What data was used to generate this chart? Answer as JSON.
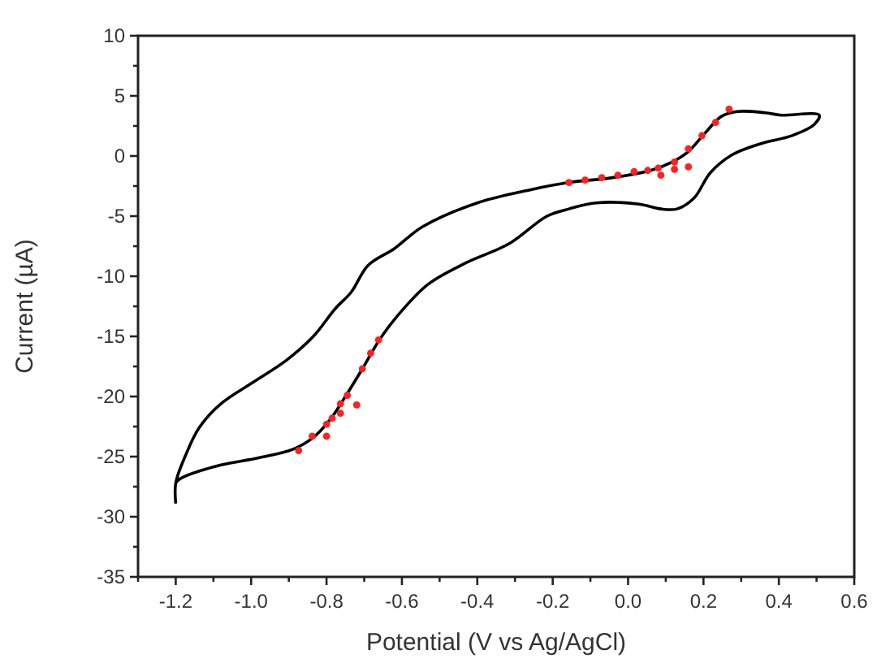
{
  "chart_data": {
    "type": "line",
    "xlabel": "Potential (V vs Ag/AgCl)",
    "ylabel": "Current (µA)",
    "xlim": [
      -1.3,
      0.6
    ],
    "ylim": [
      -35,
      10
    ],
    "xticks": [
      {
        "value": -1.3,
        "label": null
      },
      {
        "value": -1.2,
        "label": "-1.2"
      },
      {
        "value": -1.1,
        "label": null
      },
      {
        "value": -1.0,
        "label": "-1.0"
      },
      {
        "value": -0.9,
        "label": null
      },
      {
        "value": -0.8,
        "label": "-0.8"
      },
      {
        "value": -0.7,
        "label": null
      },
      {
        "value": -0.6,
        "label": "-0.6"
      },
      {
        "value": -0.5,
        "label": null
      },
      {
        "value": -0.4,
        "label": "-0.4"
      },
      {
        "value": -0.3,
        "label": null
      },
      {
        "value": -0.2,
        "label": "-0.2"
      },
      {
        "value": -0.1,
        "label": null
      },
      {
        "value": 0,
        "label": "0.0"
      },
      {
        "value": 0.1,
        "label": null
      },
      {
        "value": 0.2,
        "label": "0.2"
      },
      {
        "value": 0.3,
        "label": null
      },
      {
        "value": 0.4,
        "label": "0.4"
      },
      {
        "value": 0.5,
        "label": null
      },
      {
        "value": 0.6,
        "label": "0.6"
      }
    ],
    "yticks": [
      {
        "value": -35,
        "label": "-35"
      },
      {
        "value": -32.5,
        "label": null
      },
      {
        "value": -30,
        "label": "-30"
      },
      {
        "value": -27.5,
        "label": null
      },
      {
        "value": -25,
        "label": "-25"
      },
      {
        "value": -22.5,
        "label": null
      },
      {
        "value": -20,
        "label": "-20"
      },
      {
        "value": -17.5,
        "label": null
      },
      {
        "value": -15,
        "label": "-15"
      },
      {
        "value": -12.5,
        "label": null
      },
      {
        "value": -10,
        "label": "-10"
      },
      {
        "value": -7.5,
        "label": null
      },
      {
        "value": -5,
        "label": "-5"
      },
      {
        "value": -2.5,
        "label": null
      },
      {
        "value": 0,
        "label": "0"
      },
      {
        "value": 2.5,
        "label": null
      },
      {
        "value": 5,
        "label": "5"
      },
      {
        "value": 7.5,
        "label": null
      },
      {
        "value": 10,
        "label": "10"
      }
    ],
    "grid": false,
    "series": [
      {
        "color": "#000000",
        "marker": "none",
        "line_style": "solid",
        "x": [
          -1.2,
          -1.2,
          -1.174,
          -1.138,
          -1.08,
          -0.994,
          -0.907,
          -0.835,
          -0.777,
          -0.734,
          -0.69,
          -0.62,
          -0.546,
          -0.4,
          -0.258,
          -0.157,
          -0.041,
          0.06,
          0.117,
          0.161,
          0.204,
          0.248,
          0.29,
          0.363,
          0.406,
          0.507,
          0.493,
          0.435,
          0.349,
          0.276,
          0.218,
          0.175,
          0.13,
          0.087,
          0.029,
          -0.085,
          -0.157,
          -0.215,
          -0.316,
          -0.431,
          -0.532,
          -0.62,
          -0.662,
          -0.705,
          -0.748,
          -0.79,
          -0.835,
          -0.89,
          -0.98,
          -1.08,
          -1.18,
          -1.195,
          -1.2
        ],
        "values": [
          -28.9,
          -27.2,
          -24.9,
          -22.6,
          -20.6,
          -18.8,
          -17.0,
          -15.0,
          -12.7,
          -11.3,
          -9.1,
          -7.7,
          -5.9,
          -3.9,
          -2.8,
          -2.2,
          -1.8,
          -1.2,
          -0.5,
          0.4,
          1.9,
          3.3,
          3.7,
          3.6,
          3.4,
          3.4,
          2.6,
          1.7,
          1.0,
          0.1,
          -1.4,
          -3.5,
          -4.4,
          -4.4,
          -4.0,
          -3.9,
          -4.4,
          -5.0,
          -7.3,
          -8.9,
          -10.7,
          -13.6,
          -15.4,
          -17.7,
          -19.9,
          -21.9,
          -23.4,
          -24.4,
          -25.1,
          -25.7,
          -26.7,
          -27.0,
          -27.2
        ]
      },
      {
        "type": "scatter",
        "color": "#ff2020",
        "marker": "circle",
        "x": [
          -0.157,
          -0.114,
          -0.07,
          -0.027,
          0.016,
          0.052,
          0.08,
          0.087,
          0.123,
          0.123,
          0.16,
          0.16,
          0.196,
          0.232,
          0.268,
          -0.874,
          -0.838,
          -0.8,
          -0.8,
          -0.785,
          -0.763,
          -0.763,
          -0.745,
          -0.72,
          -0.705,
          -0.683,
          -0.662
        ],
        "values": [
          -2.2,
          -2.0,
          -1.8,
          -1.6,
          -1.3,
          -1.2,
          -1.0,
          -1.6,
          -0.5,
          -1.1,
          -0.9,
          0.6,
          1.7,
          2.8,
          3.9,
          -24.5,
          -23.3,
          -23.3,
          -22.3,
          -21.8,
          -21.4,
          -20.6,
          -19.9,
          -20.7,
          -17.7,
          -16.4,
          -15.3
        ]
      }
    ]
  }
}
